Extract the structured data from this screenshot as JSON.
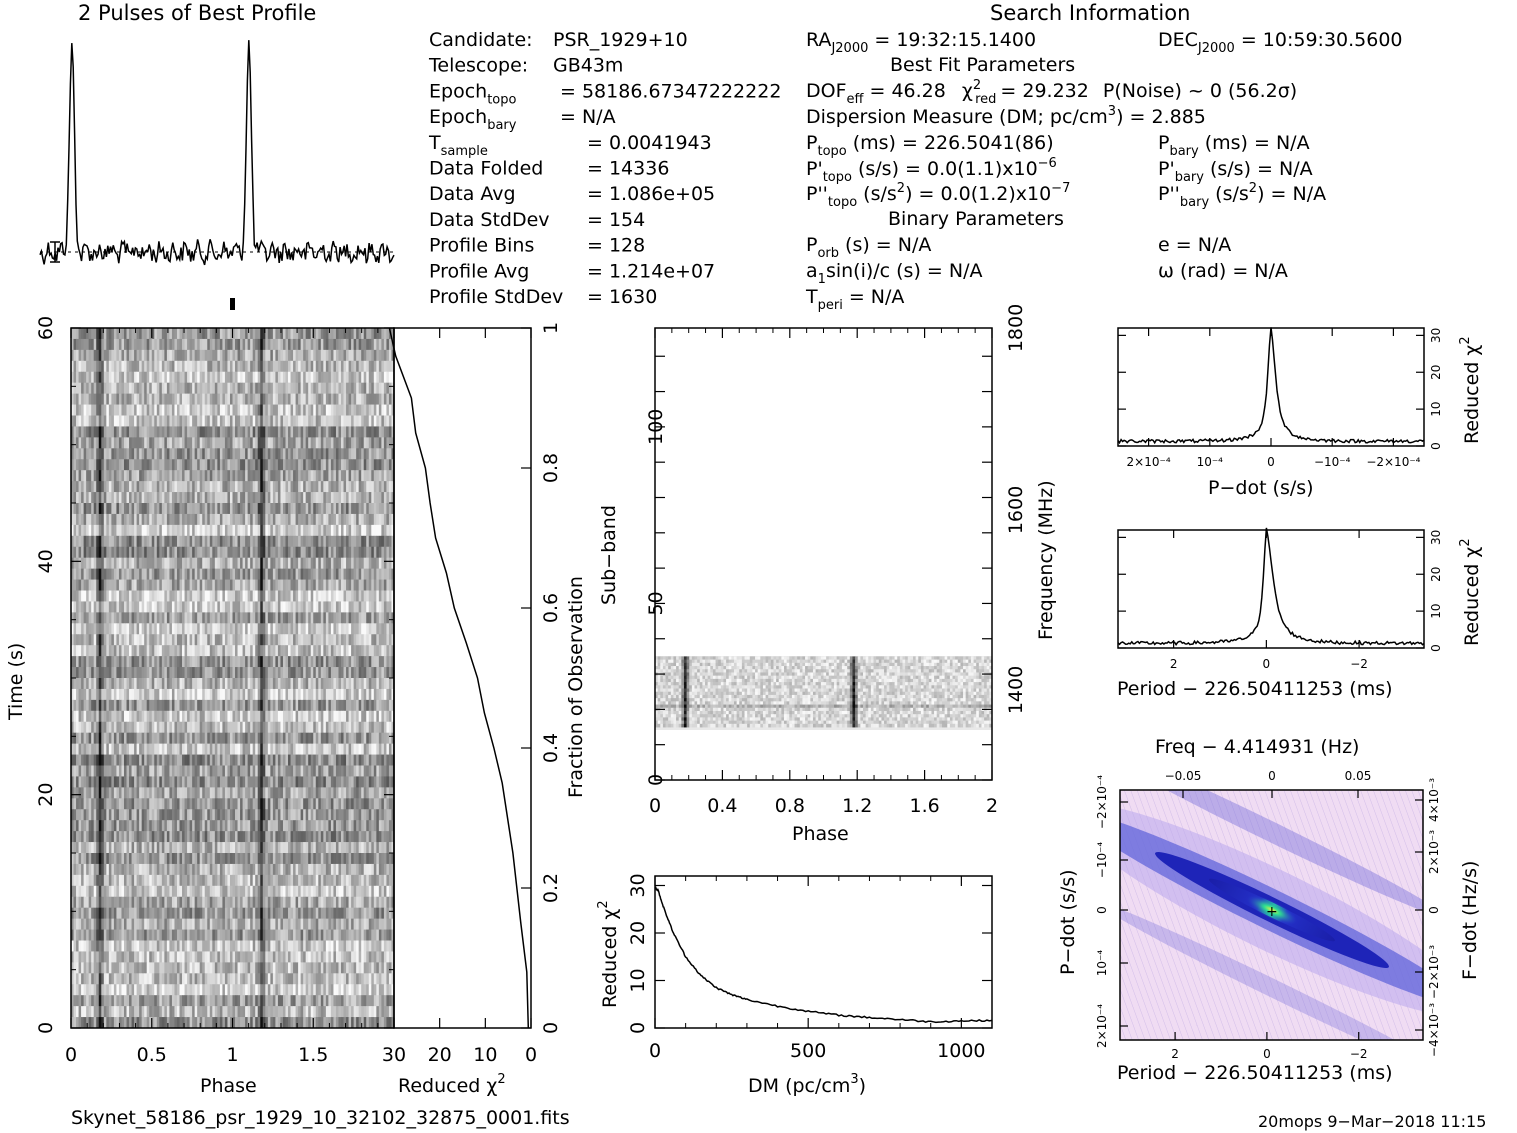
{
  "header": {
    "profile_title": "2 Pulses of Best Profile",
    "search_title": "Search Information",
    "best_fit_title": "Best Fit Parameters",
    "binary_title": "Binary Parameters"
  },
  "info_left": [
    {
      "label": "Candidate:",
      "sub": "",
      "value": "PSR_1929+10"
    },
    {
      "label": "Telescope:",
      "sub": "",
      "value": "GB43m"
    },
    {
      "label": "Epoch",
      "sub": "topo",
      "value": "= 58186.67347222222"
    },
    {
      "label": "Epoch",
      "sub": "bary",
      "value": "= N/A"
    },
    {
      "label": "T",
      "sub": "sample",
      "value": "=   0.0041943"
    },
    {
      "label": "Data Folded",
      "sub": "",
      "value": "=   14336"
    },
    {
      "label": "Data Avg",
      "sub": "",
      "value": "=   1.086e+05"
    },
    {
      "label": "Data StdDev",
      "sub": "",
      "value": "=   154"
    },
    {
      "label": "Profile Bins",
      "sub": "",
      "value": "=   128"
    },
    {
      "label": "Profile Avg",
      "sub": "",
      "value": "=   1.214e+07"
    },
    {
      "label": "Profile StdDev",
      "sub": "",
      "value": "=   1630"
    }
  ],
  "search_info": {
    "ra": "RA",
    "ra_sub": "J2000",
    "ra_value": "= 19:32:15.1400",
    "dec": "DEC",
    "dec_sub": "J2000",
    "dec_value": "= 10:59:30.5600",
    "dof": "DOF",
    "dof_sub": "eff",
    "dof_value": "= 46.28",
    "chi": "χ",
    "chi_sup": "2",
    "chi_sub": "red",
    "chi_value": "= 29.232",
    "pnoise": "P(Noise) ~ 0    (56.2σ)",
    "dm_line": "Dispersion Measure (DM; pc/cm",
    "dm_sup": "3",
    "dm_value": ") = 2.885",
    "ptopo": "P",
    "ptopo_sub": "topo",
    "ptopo_value": "(ms) =  226.5041(86)",
    "pbary": "P",
    "pbary_sub": "bary",
    "pbary_value": "(ms) = N/A",
    "pdtopo": "P'",
    "pdtopo_sub": "topo",
    "pdtopo_value": "(s/s) = 0.0(1.1)x10",
    "pdtopo_exp": "−6",
    "pdbary": "P'",
    "pdbary_sub": "bary",
    "pdbary_value": "(s/s) = N/A",
    "pddtopo": "P''",
    "pddtopo_sub": "topo",
    "pddtopo_value": "(s/s",
    "pddtopo_sup": "2",
    "pddtopo_value2": ") = 0.0(1.2)x10",
    "pddtopo_exp": "−7",
    "pddbary": "P''",
    "pddbary_sub": "bary",
    "pddbary_value": "(s/s",
    "pddbary_sup": "2",
    "pddbary_value2": ") = N/A",
    "porb": "P",
    "porb_sub": "orb",
    "porb_value": "(s) = N/A",
    "ecc": "e = N/A",
    "a1": "a",
    "a1_sub": "1",
    "a1_value": "sin(i)/c (s) = N/A",
    "omega": "ω (rad) = N/A",
    "tperi": "T",
    "tperi_sub": "peri",
    "tperi_value": "= N/A"
  },
  "footer": {
    "filename": "Skynet_58186_psr_1929_10_32102_32875_0001.fits",
    "stamp": "20mops  9−Mar−2018 11:15"
  },
  "colors": {
    "ink": "#000000",
    "greyscale_dark": "#111111",
    "greyscale_light": "#f4f4f4",
    "ppdot_bg": "#f2dcf2",
    "ppdot_mid": "#2a32c8",
    "ppdot_peak": "#20e090"
  },
  "chart_data": [
    {
      "type": "line",
      "name": "profile",
      "title": "2 Pulses of Best Profile",
      "x_range": [
        0,
        2
      ],
      "pulse_phase": [
        0.18,
        1.18
      ],
      "baseline_dotted": true
    },
    {
      "type": "heatmap",
      "name": "time-phase",
      "xlabel": "Phase",
      "ylabel": "Time (s)",
      "xlim": [
        0,
        2
      ],
      "ylim": [
        0,
        60
      ],
      "xticks": [
        "0",
        "0.5",
        "1",
        "1.5"
      ],
      "yticks": [
        "0",
        "20",
        "40",
        "60"
      ],
      "pulse_phase": [
        0.18,
        1.18
      ]
    },
    {
      "type": "line",
      "name": "time-chi",
      "xlabel": "Reduced",
      "xlabel_sup": "2",
      "xlabel_chi": "χ",
      "ylabel": "Fraction of Observation",
      "xlim": [
        30,
        0
      ],
      "ylim": [
        0,
        1
      ],
      "xticks": [
        "30",
        "20",
        "10",
        "0"
      ],
      "yticks": [
        "0",
        "0.2",
        "0.4",
        "0.6",
        "0.8",
        "1"
      ],
      "x": [
        31,
        29.5,
        26.5,
        25,
        23.5,
        22,
        20.5,
        18.8,
        16.4,
        14,
        11.8,
        10,
        8.2,
        6,
        3.8,
        2,
        1.2,
        0.6
      ],
      "y": [
        1,
        0.96,
        0.9,
        0.85,
        0.8,
        0.75,
        0.7,
        0.65,
        0.6,
        0.55,
        0.5,
        0.45,
        0.4,
        0.35,
        0.25,
        0.15,
        0.08,
        0.0
      ]
    },
    {
      "type": "heatmap",
      "name": "subband-phase",
      "xlabel": "Phase",
      "ylabel": "Sub−band",
      "ylabel_right": "Frequency (MHz)",
      "xlim": [
        0,
        2
      ],
      "ylim": [
        0,
        128
      ],
      "xticks": [
        "0",
        "0.4",
        "0.8",
        "1.2",
        "1.6",
        "2"
      ],
      "yticks": [
        "0",
        "50",
        "100"
      ],
      "yticks_right": [
        "1400",
        "1600",
        "1800"
      ],
      "active_subbands": [
        15,
        35
      ],
      "pulse_phase": [
        0.18,
        1.18
      ]
    },
    {
      "type": "line",
      "name": "dm-chi",
      "xlabel": "DM (pc/cm",
      "xlabel_sup": "3",
      "xlabel_end": ")",
      "ylabel": "Reduced",
      "ylabel_chi": "χ",
      "ylabel_sup": "2",
      "xlim": [
        0,
        1100
      ],
      "ylim": [
        0,
        32
      ],
      "xticks": [
        "0",
        "500",
        "1000"
      ],
      "yticks": [
        "0",
        "10",
        "20",
        "30"
      ],
      "x": [
        0,
        10,
        30,
        60,
        100,
        150,
        200,
        250,
        300,
        400,
        500,
        600,
        700,
        800,
        900,
        1000,
        1100
      ],
      "y": [
        29.5,
        29,
        25,
        20,
        15,
        11,
        8.5,
        7,
        6,
        4.6,
        3.5,
        2.7,
        2.2,
        1.8,
        1.3,
        1.5,
        1.6
      ]
    },
    {
      "type": "line",
      "name": "pdot-chi",
      "xlabel": "P−dot (s/s)",
      "ylabel": "Reduced",
      "ylabel_chi": "χ",
      "ylabel_sup": "2",
      "xlim": [
        0.00025,
        -0.00025
      ],
      "ylim": [
        0,
        32
      ],
      "xticks": [
        "2×10⁻⁴",
        "10⁻⁴",
        "0",
        "−10⁻⁴",
        "−2×10⁻⁴"
      ],
      "yticks": [
        "0",
        "10",
        "20",
        "30"
      ],
      "peak_value": 29.2,
      "baseline": 1.3
    },
    {
      "type": "line",
      "name": "period-chi",
      "xlabel": "Period − 226.50411253 (ms)",
      "ylabel": "Reduced",
      "ylabel_chi": "χ",
      "ylabel_sup": "2",
      "xlim": [
        3.2,
        -3.4
      ],
      "ylim": [
        0,
        32
      ],
      "xticks": [
        "2",
        "0",
        "−2"
      ],
      "yticks": [
        "0",
        "10",
        "20",
        "30"
      ],
      "peak_value": 29.2,
      "baseline": 1.3
    },
    {
      "type": "heatmap",
      "name": "p-pdot",
      "title": "Freq − 4.414931 (Hz)",
      "xlabel": "Period − 226.50411253 (ms)",
      "ylabel": "P−dot (s/s)",
      "ylabel_right": "F−dot (Hz/s)",
      "xticks": [
        "2",
        "0",
        "−2"
      ],
      "xticks_top": [
        "−0.05",
        "0",
        "0.05"
      ],
      "yticks": [
        "2×10⁻⁴",
        "10⁻⁴",
        "0",
        "−10⁻⁴",
        "−2×10⁻⁴"
      ],
      "yticks_right": [
        "−4×10⁻³",
        "−2×10⁻³",
        "0",
        "2×10⁻³",
        "4×10⁻³"
      ]
    }
  ]
}
